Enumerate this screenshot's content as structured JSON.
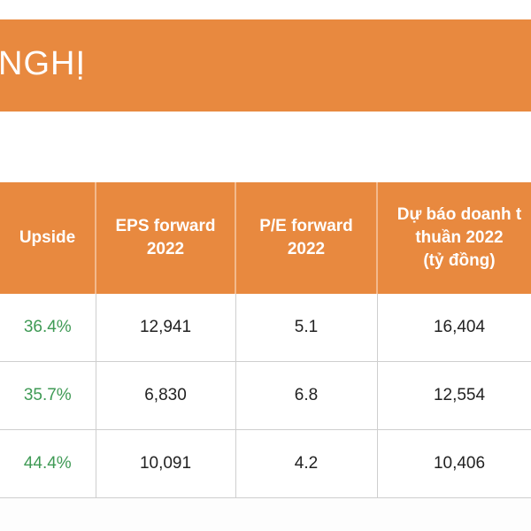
{
  "banner": {
    "title": "NGHỊ"
  },
  "table": {
    "headers": {
      "upside": "Upside",
      "eps": "EPS forward\n2022",
      "pe": "P/E forward\n2022",
      "revenue": "Dự báo doanh t\nthuần 2022\n(tỷ đồng)"
    },
    "rows": [
      {
        "upside": "36.4%",
        "eps": "12,941",
        "pe": "5.1",
        "revenue": "16,404"
      },
      {
        "upside": "35.7%",
        "eps": "6,830",
        "pe": "6.8",
        "revenue": "12,554"
      },
      {
        "upside": "44.4%",
        "eps": "10,091",
        "pe": "4.2",
        "revenue": "10,406"
      }
    ]
  },
  "colors": {
    "accent_orange": "#e8893f",
    "upside_green": "#3f9a55"
  }
}
